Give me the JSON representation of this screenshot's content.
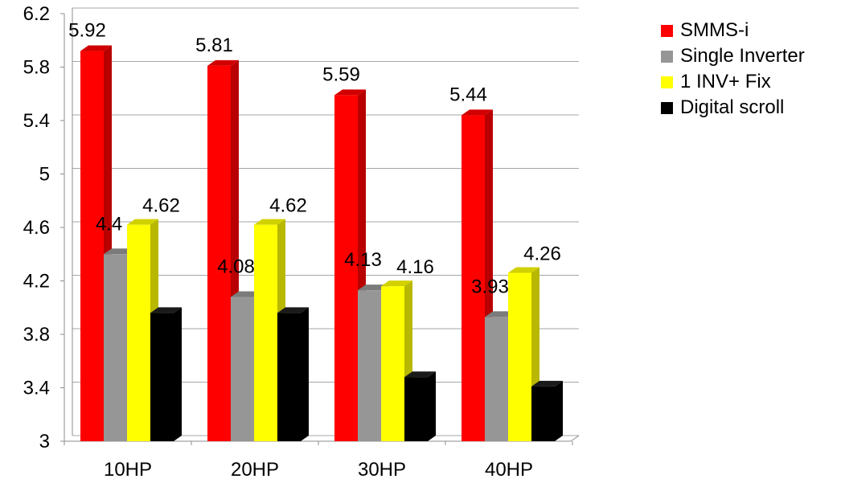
{
  "chart_data": {
    "type": "bar",
    "categories": [
      "10HP",
      "20HP",
      "30HP",
      "40HP"
    ],
    "series": [
      {
        "name": "SMMS-i",
        "color": "#ff0000",
        "values": [
          5.92,
          5.81,
          5.59,
          5.44
        ],
        "labels": [
          "5.92",
          "5.81",
          "5.59",
          "5.44"
        ]
      },
      {
        "name": "Single Inverter",
        "color": "#969696",
        "values": [
          4.4,
          4.08,
          4.13,
          3.93
        ],
        "labels": [
          "4.4",
          "4.08",
          "4.13",
          "3.93"
        ]
      },
      {
        "name": "1 INV+ Fix",
        "color": "#ffff00",
        "values": [
          4.62,
          4.62,
          4.16,
          4.26
        ],
        "labels": [
          "4.62",
          "4.62",
          "4.16",
          "4.26"
        ]
      },
      {
        "name": "Digital scroll",
        "color": "#000000",
        "values": [
          3.96,
          3.96,
          3.48,
          3.41
        ],
        "labels": []
      }
    ],
    "ylim": [
      3,
      6.2
    ],
    "yticks": [
      "3",
      "3.4",
      "3.8",
      "4.2",
      "4.6",
      "5",
      "5.4",
      "5.8",
      "6.2"
    ],
    "grid": true,
    "legend_position": "top-right",
    "title": "",
    "xlabel": "",
    "ylabel": ""
  }
}
